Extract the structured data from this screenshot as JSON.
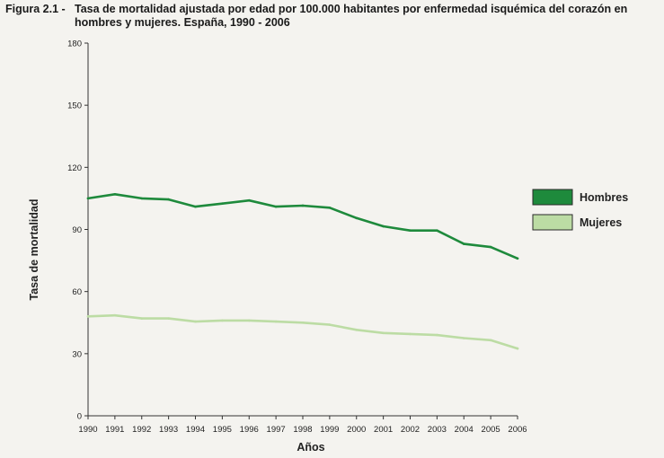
{
  "figure": {
    "prefix": "Figura 2.1 -",
    "title_line1": "Tasa de mortalidad ajustada por edad por 100.000 habitantes por enfermedad isquémica del corazón en",
    "title_line2": "hombres y mujeres. España, 1990 - 2006"
  },
  "chart_data": {
    "type": "line",
    "title": "Tasa de mortalidad ajustada por edad por 100.000 habitantes por enfermedad isquémica del corazón en hombres y mujeres. España, 1990 - 2006",
    "xlabel": "Años",
    "ylabel": "Tasa de mortalidad",
    "x": [
      "1990",
      "1991",
      "1992",
      "1993",
      "1994",
      "1995",
      "1996",
      "1997",
      "1998",
      "1999",
      "2000",
      "2001",
      "2002",
      "2003",
      "2004",
      "2005",
      "2006"
    ],
    "ylim": [
      0,
      180
    ],
    "yticks": [
      0,
      30,
      60,
      90,
      120,
      150,
      180
    ],
    "legend_position": "right",
    "series": [
      {
        "name": "Hombres",
        "color": "#1e8a3c",
        "values": [
          105,
          107,
          105,
          104.5,
          101,
          102.5,
          104,
          101,
          101.5,
          100.5,
          95.5,
          91.5,
          89.5,
          89.5,
          83,
          81.5,
          76
        ]
      },
      {
        "name": "Mujeres",
        "color": "#bcdca4",
        "values": [
          48,
          48.5,
          47,
          47,
          45.5,
          46,
          46,
          45.5,
          45,
          44,
          41.5,
          40,
          39.5,
          39,
          37.5,
          36.5,
          32.5
        ]
      }
    ]
  }
}
